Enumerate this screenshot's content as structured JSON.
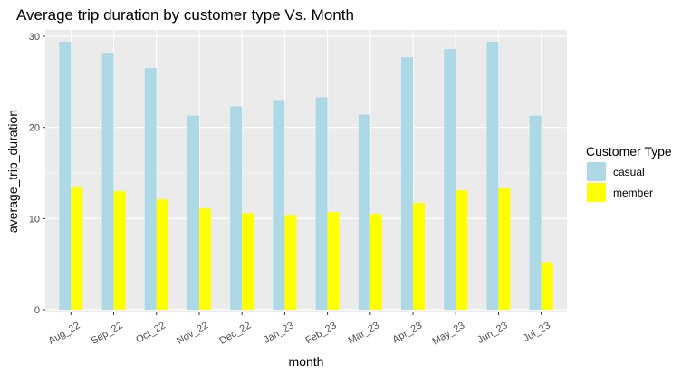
{
  "chart_data": {
    "type": "bar",
    "title": "Average trip duration by customer type Vs. Month",
    "xlabel": "month",
    "ylabel": "average_trip_duration",
    "ylim": [
      -0.3,
      30.7
    ],
    "yticks": [
      0,
      10,
      20,
      30
    ],
    "categories": [
      "Aug_22",
      "Sep_22",
      "Oct_22",
      "Nov_22",
      "Dec_22",
      "Jan_23",
      "Feb_23",
      "Mar_23",
      "Apr_23",
      "May_23",
      "Jun_23",
      "Jul_23"
    ],
    "series": [
      {
        "name": "casual",
        "color": "#add8e6",
        "values": [
          29.4,
          28.1,
          26.5,
          21.3,
          22.3,
          23.0,
          23.3,
          21.4,
          27.7,
          28.6,
          29.4,
          21.3
        ]
      },
      {
        "name": "member",
        "color": "#ffff00",
        "values": [
          13.4,
          13.0,
          12.1,
          11.1,
          10.6,
          10.4,
          10.7,
          10.5,
          11.7,
          13.1,
          13.3,
          5.2
        ]
      }
    ],
    "legend": {
      "title": "Customer Type",
      "position": "right"
    },
    "grid": true,
    "background": "#ebebeb",
    "gridColor": "#ffffff"
  }
}
